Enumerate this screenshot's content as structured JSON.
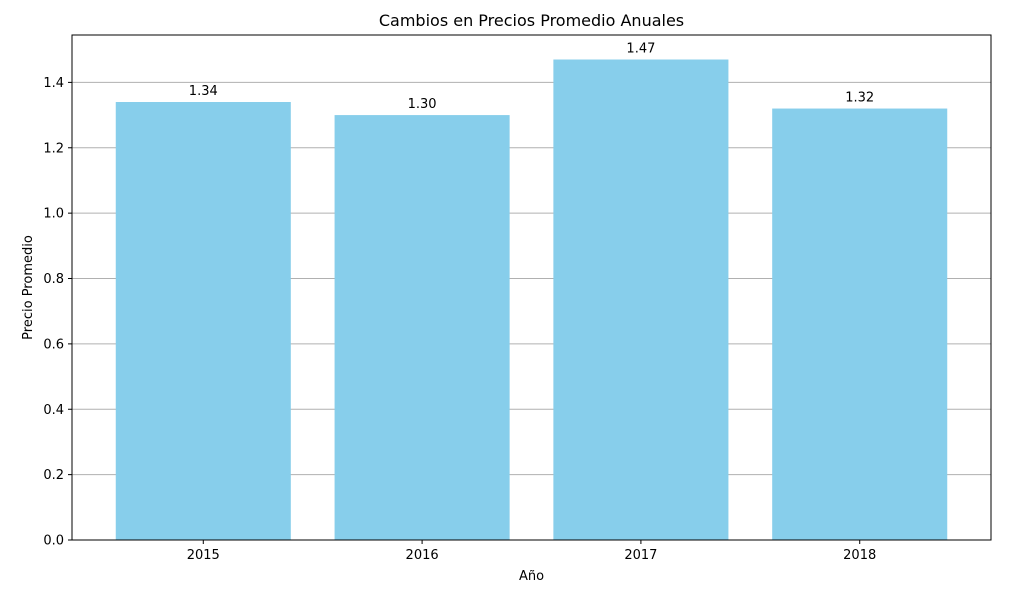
{
  "chart_data": {
    "type": "bar",
    "title": "Cambios en Precios Promedio Anuales",
    "xlabel": "Año",
    "ylabel": "Precio Promedio",
    "categories": [
      "2015",
      "2016",
      "2017",
      "2018"
    ],
    "values": [
      1.34,
      1.3,
      1.47,
      1.32
    ],
    "value_labels": [
      "1.34",
      "1.30",
      "1.47",
      "1.32"
    ],
    "ylim": [
      0,
      1.545
    ],
    "yticks": [
      0.0,
      0.2,
      0.4,
      0.6,
      0.8,
      1.0,
      1.2,
      1.4
    ],
    "ytick_labels": [
      "0.0",
      "0.2",
      "0.4",
      "0.6",
      "0.8",
      "1.0",
      "1.2",
      "1.4"
    ],
    "grid": "horizontal",
    "bar_color": "#87ceeb",
    "grid_color": "#b0b0b0"
  }
}
